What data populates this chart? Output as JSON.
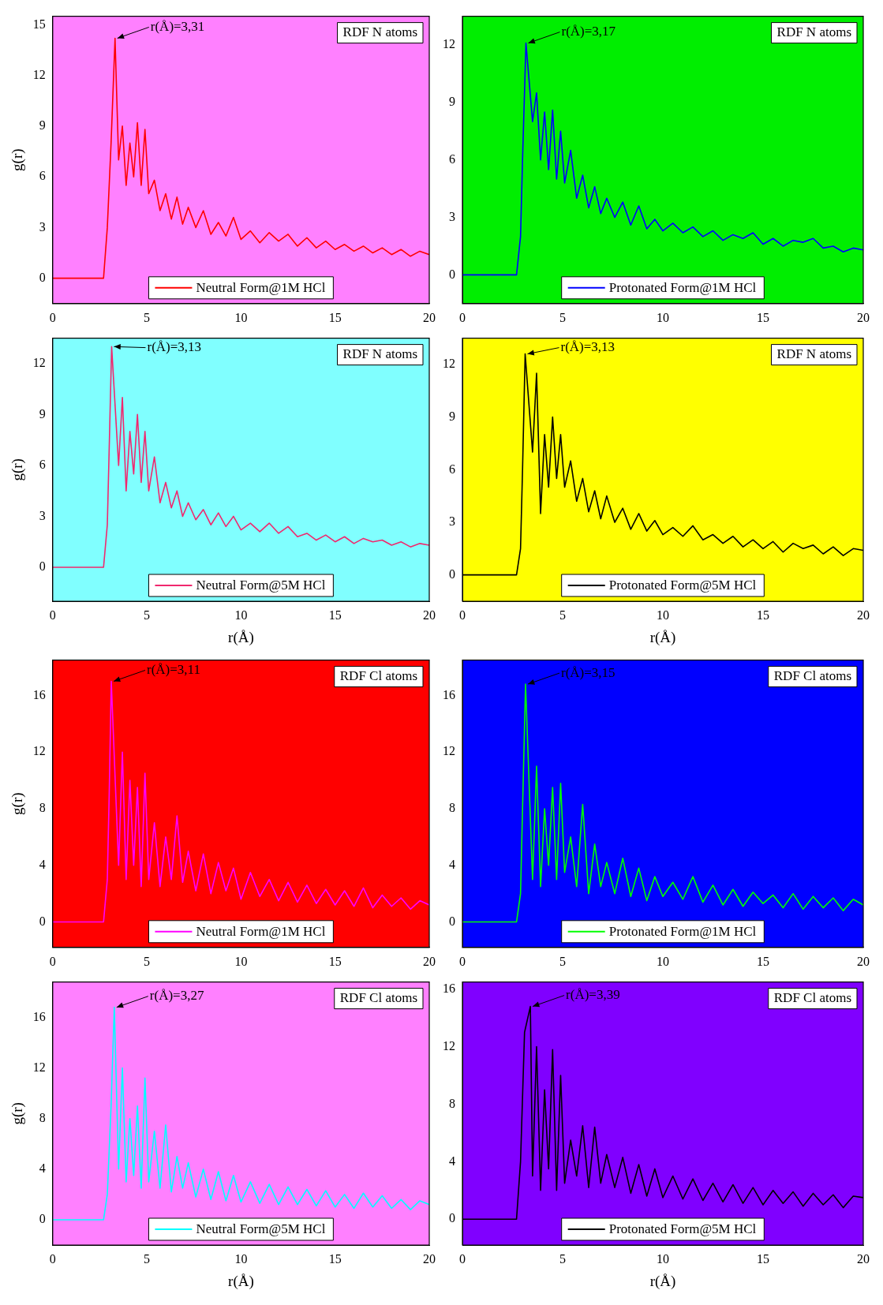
{
  "chart_data": [
    {
      "type": "line",
      "ylabel": "g(r)",
      "annotations": [
        "RDF N atoms",
        {
          "text": "r(Å)=3,31",
          "x": 3.31,
          "y": 14.2
        }
      ],
      "legend": "bottom",
      "xlim": [
        0,
        20
      ],
      "xticks": [
        0,
        5,
        10,
        15,
        20
      ],
      "ylim": [
        -1.5,
        15.5
      ],
      "yticks": [
        0,
        3,
        6,
        9,
        12,
        15
      ],
      "x": [
        0,
        2.7,
        2.9,
        3.1,
        3.31,
        3.5,
        3.7,
        3.9,
        4.1,
        4.3,
        4.5,
        4.7,
        4.9,
        5.1,
        5.4,
        5.7,
        6.0,
        6.3,
        6.6,
        6.9,
        7.2,
        7.6,
        8.0,
        8.4,
        8.8,
        9.2,
        9.6,
        10,
        10.5,
        11,
        11.5,
        12,
        12.5,
        13,
        13.5,
        14,
        14.5,
        15,
        15.5,
        16,
        16.5,
        17,
        17.5,
        18,
        18.5,
        19,
        19.5,
        20
      ],
      "series": [
        {
          "name": "Neutral Form@1M HCl",
          "color": "#ff0000",
          "values": [
            0,
            0,
            3,
            8,
            14.2,
            7,
            9,
            5.5,
            8,
            6,
            9.2,
            5.5,
            8.8,
            5,
            5.8,
            4,
            5,
            3.5,
            4.8,
            3.2,
            4.2,
            3,
            4,
            2.6,
            3.3,
            2.5,
            3.6,
            2.3,
            2.8,
            2.1,
            2.7,
            2.2,
            2.6,
            1.9,
            2.4,
            1.8,
            2.2,
            1.7,
            2,
            1.6,
            1.9,
            1.5,
            1.8,
            1.4,
            1.7,
            1.3,
            1.6,
            1.4
          ]
        }
      ]
    },
    {
      "type": "line",
      "annotations": [
        "RDF N atoms",
        {
          "text": "r(Å)=3,17",
          "x": 3.17,
          "y": 12.1
        }
      ],
      "legend": "bottom",
      "xlim": [
        0,
        20
      ],
      "xticks": [
        0,
        5,
        10,
        15,
        20
      ],
      "ylim": [
        -1.5,
        13.5
      ],
      "yticks": [
        0,
        3,
        6,
        9,
        12
      ],
      "x": [
        0,
        2.7,
        2.9,
        3.0,
        3.17,
        3.5,
        3.7,
        3.9,
        4.1,
        4.3,
        4.5,
        4.7,
        4.9,
        5.1,
        5.4,
        5.7,
        6.0,
        6.3,
        6.6,
        6.9,
        7.2,
        7.6,
        8.0,
        8.4,
        8.8,
        9.2,
        9.6,
        10,
        10.5,
        11,
        11.5,
        12,
        12.5,
        13,
        13.5,
        14,
        14.5,
        15,
        15.5,
        16,
        16.5,
        17,
        17.5,
        18,
        18.5,
        19,
        19.5,
        20
      ],
      "series": [
        {
          "name": "Protonated Form@1M HCl",
          "color": "#0000ff",
          "values": [
            0,
            0,
            2,
            6,
            12.1,
            8,
            9.5,
            6,
            8.5,
            5.5,
            8.6,
            5,
            7.5,
            4.8,
            6.5,
            4,
            5.2,
            3.5,
            4.6,
            3.2,
            4,
            3,
            3.8,
            2.6,
            3.6,
            2.4,
            2.9,
            2.3,
            2.7,
            2.2,
            2.5,
            2,
            2.3,
            1.8,
            2.1,
            1.9,
            2.2,
            1.6,
            1.9,
            1.5,
            1.8,
            1.7,
            1.9,
            1.4,
            1.5,
            1.2,
            1.4,
            1.3
          ]
        }
      ]
    },
    {
      "type": "line",
      "xlabel": "r(Å)",
      "ylabel": "g(r)",
      "annotations": [
        "RDF N atoms",
        {
          "text": "r(Å)=3,13",
          "x": 3.13,
          "y": 13
        }
      ],
      "legend": "bottom",
      "xlim": [
        0,
        20
      ],
      "xticks": [
        0,
        5,
        10,
        15,
        20
      ],
      "ylim": [
        -2,
        13.5
      ],
      "yticks": [
        0,
        3,
        6,
        9,
        12
      ],
      "x": [
        0,
        2.7,
        2.9,
        3.0,
        3.13,
        3.5,
        3.7,
        3.9,
        4.1,
        4.3,
        4.5,
        4.7,
        4.9,
        5.1,
        5.4,
        5.7,
        6.0,
        6.3,
        6.6,
        6.9,
        7.2,
        7.6,
        8.0,
        8.4,
        8.8,
        9.2,
        9.6,
        10,
        10.5,
        11,
        11.5,
        12,
        12.5,
        13,
        13.5,
        14,
        14.5,
        15,
        15.5,
        16,
        16.5,
        17,
        17.5,
        18,
        18.5,
        19,
        19.5,
        20
      ],
      "series": [
        {
          "name": "Neutral Form@5M HCl",
          "color": "#f0286e",
          "values": [
            0,
            0,
            2.5,
            7,
            13,
            6,
            10,
            4.5,
            8,
            5.5,
            9,
            5,
            8,
            4.5,
            6.5,
            3.8,
            5,
            3.5,
            4.5,
            3,
            3.8,
            2.8,
            3.4,
            2.5,
            3.2,
            2.4,
            3,
            2.2,
            2.6,
            2.1,
            2.6,
            2,
            2.4,
            1.8,
            2,
            1.6,
            1.9,
            1.5,
            1.8,
            1.4,
            1.7,
            1.5,
            1.6,
            1.3,
            1.5,
            1.2,
            1.4,
            1.3
          ]
        }
      ]
    },
    {
      "type": "line",
      "xlabel": "r(Å)",
      "annotations": [
        "RDF N atoms",
        {
          "text": "r(Å)=3,13",
          "x": 3.13,
          "y": 12.6
        }
      ],
      "legend": "bottom",
      "xlim": [
        0,
        20
      ],
      "xticks": [
        0,
        5,
        10,
        15,
        20
      ],
      "ylim": [
        -1.5,
        13.5
      ],
      "yticks": [
        0,
        3,
        6,
        9,
        12
      ],
      "x": [
        0,
        2.7,
        2.9,
        3.0,
        3.13,
        3.5,
        3.7,
        3.9,
        4.1,
        4.3,
        4.5,
        4.7,
        4.9,
        5.1,
        5.4,
        5.7,
        6.0,
        6.3,
        6.6,
        6.9,
        7.2,
        7.6,
        8.0,
        8.4,
        8.8,
        9.2,
        9.6,
        10,
        10.5,
        11,
        11.5,
        12,
        12.5,
        13,
        13.5,
        14,
        14.5,
        15,
        15.5,
        16,
        16.5,
        17,
        17.5,
        18,
        18.5,
        19,
        19.5,
        20
      ],
      "series": [
        {
          "name": "Protonated Form@5M HCl",
          "color": "#000000",
          "values": [
            0,
            0,
            1.5,
            6,
            12.6,
            7,
            11.5,
            3.5,
            8,
            5,
            9,
            5.5,
            8,
            5,
            6.5,
            4.2,
            5.5,
            3.6,
            4.8,
            3.2,
            4.5,
            3,
            3.8,
            2.6,
            3.5,
            2.5,
            3.1,
            2.3,
            2.7,
            2.2,
            2.8,
            2,
            2.3,
            1.8,
            2.2,
            1.6,
            2,
            1.5,
            1.9,
            1.3,
            1.8,
            1.5,
            1.7,
            1.2,
            1.6,
            1.1,
            1.5,
            1.4
          ]
        }
      ]
    },
    {
      "type": "line",
      "ylabel": "g(r)",
      "annotations": [
        "RDF Cl atoms",
        {
          "text": "r(Å)=3,11",
          "x": 3.11,
          "y": 17
        }
      ],
      "legend": "bottom",
      "xlim": [
        0,
        20
      ],
      "xticks": [
        0,
        5,
        10,
        15,
        20
      ],
      "ylim": [
        -1.8,
        18.5
      ],
      "yticks": [
        0,
        4,
        8,
        12,
        16
      ],
      "x": [
        0,
        2.7,
        2.9,
        3.0,
        3.11,
        3.5,
        3.7,
        3.9,
        4.1,
        4.3,
        4.5,
        4.7,
        4.9,
        5.1,
        5.4,
        5.7,
        6.0,
        6.3,
        6.6,
        6.9,
        7.2,
        7.6,
        8.0,
        8.4,
        8.8,
        9.2,
        9.6,
        10,
        10.5,
        11,
        11.5,
        12,
        12.5,
        13,
        13.5,
        14,
        14.5,
        15,
        15.5,
        16,
        16.5,
        17,
        17.5,
        18,
        18.5,
        19,
        19.5,
        20
      ],
      "series": [
        {
          "name": "Neutral Form@1M HCl",
          "color": "#ff00ff",
          "values": [
            0,
            0,
            3,
            9,
            17,
            4,
            12,
            3,
            10,
            4,
            9.5,
            2.5,
            10.5,
            3,
            7,
            2.5,
            6,
            3,
            7.5,
            2.8,
            5,
            2.2,
            4.8,
            2,
            4.2,
            2.2,
            3.8,
            1.6,
            3.5,
            1.8,
            3,
            1.5,
            2.8,
            1.4,
            2.6,
            1.3,
            2.3,
            1.2,
            2.2,
            1.1,
            2.4,
            1,
            1.9,
            1.1,
            1.7,
            0.9,
            1.5,
            1.2
          ]
        }
      ]
    },
    {
      "type": "line",
      "annotations": [
        "RDF Cl atoms",
        {
          "text": "r(Å)=3,15",
          "x": 3.15,
          "y": 16.8
        }
      ],
      "legend": "bottom",
      "xlim": [
        0,
        20
      ],
      "xticks": [
        0,
        5,
        10,
        15,
        20
      ],
      "ylim": [
        -1.8,
        18.5
      ],
      "yticks": [
        0,
        4,
        8,
        12,
        16
      ],
      "x": [
        0,
        2.7,
        2.9,
        3.0,
        3.15,
        3.5,
        3.7,
        3.9,
        4.1,
        4.3,
        4.5,
        4.7,
        4.9,
        5.1,
        5.4,
        5.7,
        6.0,
        6.3,
        6.6,
        6.9,
        7.2,
        7.6,
        8.0,
        8.4,
        8.8,
        9.2,
        9.6,
        10,
        10.5,
        11,
        11.5,
        12,
        12.5,
        13,
        13.5,
        14,
        14.5,
        15,
        15.5,
        16,
        16.5,
        17,
        17.5,
        18,
        18.5,
        19,
        19.5,
        20
      ],
      "series": [
        {
          "name": "Protonated Form@1M HCl",
          "color": "#00ff00",
          "values": [
            0,
            0,
            2,
            8,
            16.8,
            3,
            11,
            2.5,
            8,
            4,
            9.5,
            3,
            9.8,
            3.5,
            6,
            2.5,
            8.3,
            2,
            5.5,
            2.5,
            4.2,
            2,
            4.5,
            1.8,
            3.8,
            1.5,
            3.2,
            1.8,
            2.8,
            1.6,
            3.2,
            1.4,
            2.6,
            1.2,
            2.3,
            1.1,
            2.1,
            1.3,
            1.9,
            1,
            2,
            0.9,
            1.8,
            1,
            1.7,
            0.8,
            1.6,
            1.2
          ]
        }
      ]
    },
    {
      "type": "line",
      "xlabel": "r(Å)",
      "ylabel": "g(r)",
      "annotations": [
        "RDF Cl atoms",
        {
          "text": "r(Å)=3,27",
          "x": 3.27,
          "y": 16.8
        }
      ],
      "legend": "bottom",
      "xlim": [
        0,
        20
      ],
      "xticks": [
        0,
        5,
        10,
        15,
        20
      ],
      "ylim": [
        -2,
        18.8
      ],
      "yticks": [
        0,
        4,
        8,
        12,
        16
      ],
      "x": [
        0,
        2.7,
        2.9,
        3.1,
        3.27,
        3.5,
        3.7,
        3.9,
        4.1,
        4.3,
        4.5,
        4.7,
        4.9,
        5.1,
        5.4,
        5.7,
        6.0,
        6.3,
        6.6,
        6.9,
        7.2,
        7.6,
        8.0,
        8.4,
        8.8,
        9.2,
        9.6,
        10,
        10.5,
        11,
        11.5,
        12,
        12.5,
        13,
        13.5,
        14,
        14.5,
        15,
        15.5,
        16,
        16.5,
        17,
        17.5,
        18,
        18.5,
        19,
        19.5,
        20
      ],
      "series": [
        {
          "name": "Neutral Form@5M HCl",
          "color": "#00ffff",
          "values": [
            0,
            0,
            2,
            9,
            16.8,
            4,
            12,
            3,
            8,
            3.5,
            9,
            2.5,
            11.2,
            3,
            7,
            2.5,
            7.5,
            2.2,
            5,
            2.5,
            4.5,
            1.8,
            4,
            1.6,
            3.8,
            1.5,
            3.5,
            1.4,
            3,
            1.3,
            2.8,
            1.2,
            2.6,
            1.2,
            2.4,
            1.1,
            2.3,
            1,
            2,
            0.9,
            2.1,
            1,
            1.9,
            0.9,
            1.6,
            0.8,
            1.5,
            1.2
          ]
        }
      ]
    },
    {
      "type": "line",
      "xlabel": "r(Å)",
      "annotations": [
        "RDF Cl atoms",
        {
          "text": "r(Å)=3,39",
          "x": 3.39,
          "y": 14.8
        }
      ],
      "legend": "bottom",
      "xlim": [
        0,
        20
      ],
      "xticks": [
        0,
        5,
        10,
        15,
        20
      ],
      "ylim": [
        -1.8,
        16.5
      ],
      "yticks": [
        0,
        4,
        8,
        12,
        16
      ],
      "x": [
        0,
        2.7,
        2.9,
        3.1,
        3.39,
        3.5,
        3.7,
        3.9,
        4.1,
        4.3,
        4.5,
        4.7,
        4.9,
        5.1,
        5.4,
        5.7,
        6.0,
        6.3,
        6.6,
        6.9,
        7.2,
        7.6,
        8.0,
        8.4,
        8.8,
        9.2,
        9.6,
        10,
        10.5,
        11,
        11.5,
        12,
        12.5,
        13,
        13.5,
        14,
        14.5,
        15,
        15.5,
        16,
        16.5,
        17,
        17.5,
        18,
        18.5,
        19,
        19.5,
        20
      ],
      "series": [
        {
          "name": "Protonated Form@5M HCl",
          "color": "#000000",
          "values": [
            0,
            0,
            4,
            13,
            14.8,
            3,
            12,
            2,
            9,
            3.5,
            11.8,
            2,
            10,
            2.5,
            5.5,
            3,
            6.5,
            2.2,
            6.4,
            2.5,
            4.5,
            2.2,
            4.3,
            1.8,
            3.8,
            1.6,
            3.5,
            1.5,
            3,
            1.4,
            2.8,
            1.3,
            2.5,
            1.2,
            2.4,
            1.1,
            2.2,
            1,
            2,
            1.1,
            1.9,
            0.9,
            1.8,
            1,
            1.7,
            0.8,
            1.6,
            1.5
          ]
        }
      ]
    }
  ]
}
